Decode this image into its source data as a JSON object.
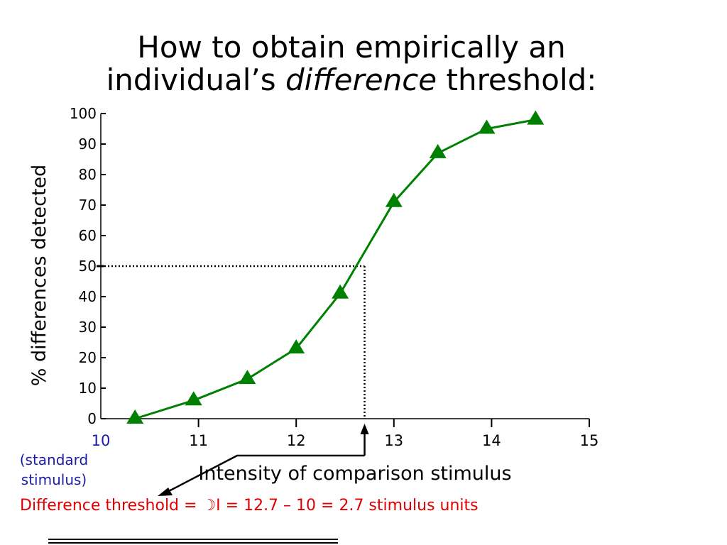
{
  "title": {
    "line1": "How to obtain empirically an",
    "line2_prefix": "individual’s ",
    "line2_italic": "difference",
    "line2_suffix": " threshold:"
  },
  "chart_data": {
    "type": "line",
    "xlabel": "Intensity of comparison stimulus",
    "ylabel": "% differences  detected",
    "xlim": [
      10,
      15
    ],
    "ylim": [
      0,
      100
    ],
    "x_ticks": [
      10,
      11,
      12,
      13,
      14,
      15
    ],
    "y_ticks": [
      0,
      10,
      20,
      30,
      40,
      50,
      60,
      70,
      80,
      90,
      100
    ],
    "grid": false,
    "series": [
      {
        "x": [
          10.35,
          10.95,
          11.5,
          12.0,
          12.45,
          13.0,
          13.45,
          13.95,
          14.45
        ],
        "y": [
          0,
          6,
          13,
          23,
          41,
          71,
          87,
          95,
          98
        ],
        "color": "#008000",
        "marker": "triangle"
      }
    ],
    "annotations": [
      {
        "type": "threshold-guide",
        "x": 12.7,
        "y": 50
      }
    ],
    "first_tick_color": "#1c1ca8"
  },
  "standard_note": {
    "line1": "(standard",
    "line2": "stimulus)"
  },
  "threshold_note": "Difference threshold = ☽I = 12.7 – 10 = 2.7  stimulus units",
  "colors": {
    "series": "#008000",
    "note_red": "#e00000",
    "note_blue": "#1c1ca8"
  }
}
